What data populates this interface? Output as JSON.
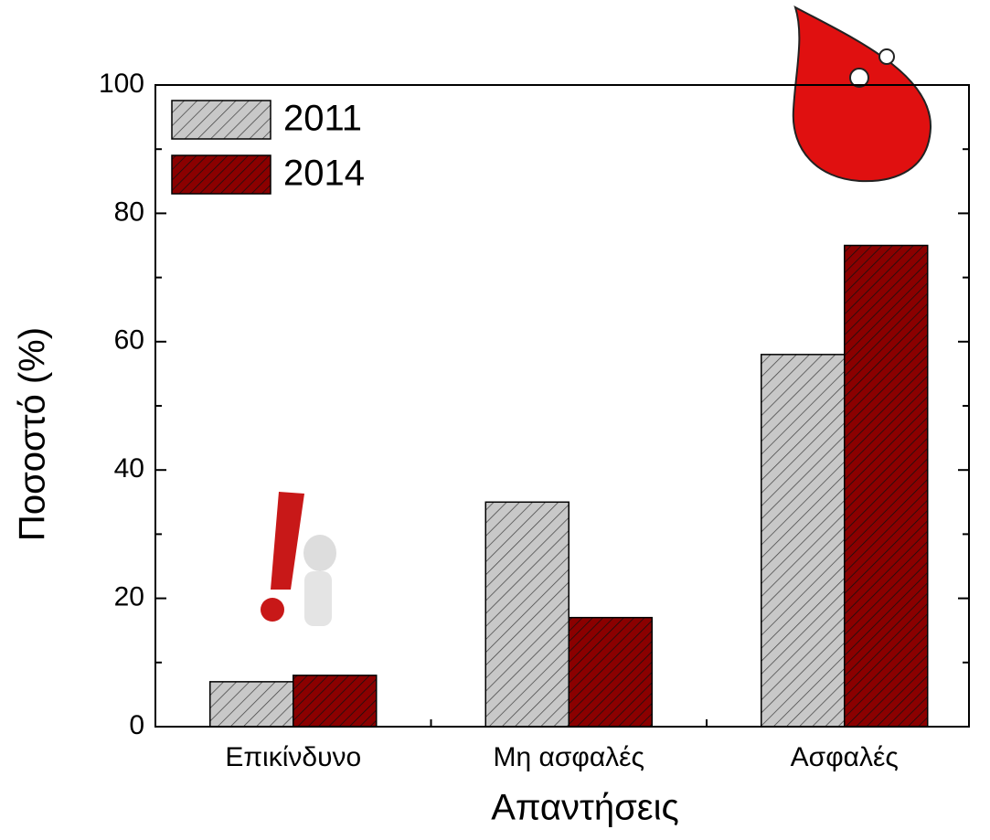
{
  "chart_data": {
    "type": "bar",
    "x_label": "Απαντήσεις",
    "y_label": "Ποσοστό  (%)",
    "categories": [
      "Επικίνδυνο",
      "Μη ασφαλές",
      "Ασφαλές"
    ],
    "series": [
      {
        "name": "2011",
        "color": "#c8c8c8",
        "values": [
          7,
          35,
          58
        ]
      },
      {
        "name": "2014",
        "color": "#8b0000",
        "values": [
          8,
          17,
          75
        ]
      }
    ],
    "ylim": [
      0,
      100
    ],
    "yticks": [
      0,
      20,
      40,
      60,
      80,
      100
    ],
    "legend": "upper left"
  }
}
